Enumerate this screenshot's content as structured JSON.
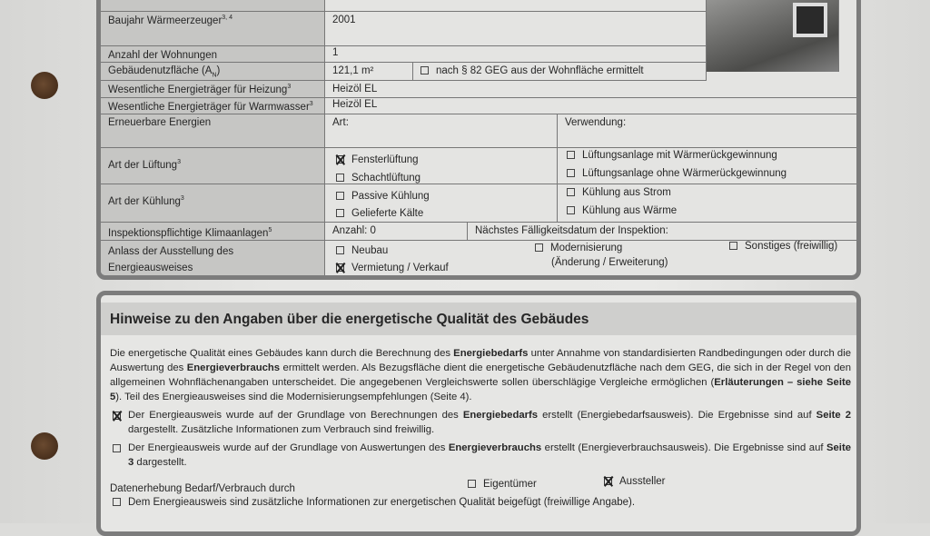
{
  "building_data": {
    "rows": [
      {
        "label": "Baujahr Wärmeerzeuger",
        "sup": "3, 4",
        "value": "2001"
      },
      {
        "label": "Anzahl der Wohnungen",
        "value": "1"
      },
      {
        "label": "Gebäudenutzfläche (A",
        "label_sub": "N",
        "label_end": ")",
        "value": "121,1 m²",
        "option": "nach § 82 GEG aus der Wohnfläche ermittelt",
        "option_checked": false
      },
      {
        "label": "Wesentliche Energieträger für Heizung",
        "sup": "3",
        "value": "Heizöl EL"
      },
      {
        "label": "Wesentliche Energieträger für Warmwasser",
        "sup": "3",
        "value": "Heizöl EL"
      },
      {
        "label": "Erneuerbare Energien",
        "art": "Art:",
        "verwendung": "Verwendung:"
      },
      {
        "label": "Art der Lüftung",
        "sup": "3",
        "options": [
          {
            "text": "Fensterlüftung",
            "checked": true
          },
          {
            "text": "Schachtlüftung",
            "checked": false
          },
          {
            "text": "Lüftungsanlage mit Wärmerückgewinnung",
            "checked": false
          },
          {
            "text": "Lüftungsanlage ohne Wärmerückgewinnung",
            "checked": false
          }
        ]
      },
      {
        "label": "Art der Kühlung",
        "sup": "3",
        "options": [
          {
            "text": "Passive Kühlung",
            "checked": false
          },
          {
            "text": "Gelieferte Kälte",
            "checked": false
          },
          {
            "text": "Kühlung aus Strom",
            "checked": false
          },
          {
            "text": "Kühlung aus Wärme",
            "checked": false
          }
        ]
      },
      {
        "label": "Inspektionspflichtige Klimaanlagen",
        "sup": "5",
        "anzahl": "Anzahl: 0",
        "naechstes": "Nächstes Fälligkeitsdatum der Inspektion:"
      },
      {
        "label_line1": "Anlass der Ausstellung des",
        "label_line2": "Energieausweises",
        "options": [
          {
            "text": "Neubau",
            "checked": false
          },
          {
            "text": "Vermietung / Verkauf",
            "checked": true
          },
          {
            "text": "Modernisierung",
            "sub": "(Änderung / Erweiterung)",
            "checked": false
          },
          {
            "text": "Sonstiges (freiwillig)",
            "checked": false
          }
        ]
      }
    ]
  },
  "hinweise": {
    "title": "Hinweise zu den Angaben über die energetische Qualität des Gebäudes",
    "p1": [
      "Die energetische Qualität eines Gebäudes kann durch die Berechnung des ",
      "Energiebedarfs",
      " unter Annahme von standardisierten Randbedingungen oder durch die Auswertung des ",
      "Energieverbrauchs",
      " ermittelt werden. Als Bezugsfläche dient die energetische Gebäudenutzfläche nach dem GEG, die sich in der Regel von den allgemeinen Wohnflächenangaben unterscheidet. Die angegebenen Vergleichswerte sollen überschlägige Vergleiche ermöglichen (",
      "Erläuterungen – siehe Seite 5",
      "). Teil des Energieausweises sind die Modernisierungsempfehlungen (Seite 4)."
    ],
    "opt_bedarf": {
      "checked": true,
      "parts": [
        "Der Energieausweis wurde auf der Grundlage von Berechnungen des ",
        "Energiebedarfs",
        " erstellt (Energiebedarfsausweis). Die Ergebnisse sind auf ",
        "Seite 2",
        " dargestellt. Zusätzliche Informationen zum Verbrauch sind freiwillig."
      ]
    },
    "opt_verbrauch": {
      "checked": false,
      "parts": [
        "Der Energieausweis wurde auf der Grundlage von Auswertungen des ",
        "Energieverbrauchs",
        " erstellt (Energieverbrauchsausweis). Die Ergebnisse sind auf ",
        "Seite 3",
        " dargestellt."
      ]
    },
    "datenerhebung": {
      "label": "Datenerhebung Bedarf/Verbrauch durch",
      "eigentuemer": "Eigentümer",
      "eigentuemer_checked": false,
      "aussteller": "Aussteller",
      "aussteller_checked": true
    },
    "zusatz": {
      "checked": false,
      "text": "Dem Energieausweis sind zusätzliche Informationen zur energetischen Qualität beigefügt (freiwillige Angabe)."
    }
  }
}
